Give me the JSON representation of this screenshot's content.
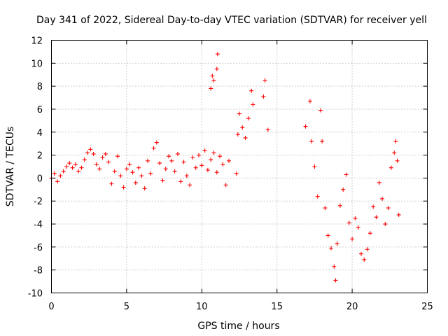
{
  "chart_data": {
    "type": "scatter",
    "title": "Day 341 of 2022, Sidereal Day-to-day VTEC variation (SDTVAR) for receiver yell",
    "xlabel": "GPS time / hours",
    "ylabel": "SDTVAR / TECUs",
    "xlim": [
      0,
      25
    ],
    "ylim": [
      -10,
      12
    ],
    "xticks": [
      0,
      5,
      10,
      15,
      20,
      25
    ],
    "yticks": [
      -10,
      -8,
      -6,
      -4,
      -2,
      0,
      2,
      4,
      6,
      8,
      10,
      12
    ],
    "xtick_labels": [
      "0",
      "5",
      "10",
      "15",
      "20",
      "25"
    ],
    "ytick_labels": [
      "-10",
      "-8",
      "-6",
      "-4",
      "-2",
      "0",
      "2",
      "4",
      "6",
      "8",
      "10",
      "12"
    ],
    "grid": true,
    "marker": "+",
    "color": "#ff0000",
    "series": [
      {
        "name": "SDTVAR",
        "points": [
          [
            0.0,
            0.0
          ],
          [
            0.2,
            0.4
          ],
          [
            0.4,
            -0.3
          ],
          [
            0.6,
            0.2
          ],
          [
            0.8,
            0.6
          ],
          [
            1.0,
            1.0
          ],
          [
            1.2,
            1.3
          ],
          [
            1.4,
            0.9
          ],
          [
            1.6,
            1.2
          ],
          [
            1.8,
            0.6
          ],
          [
            2.0,
            0.9
          ],
          [
            2.2,
            1.6
          ],
          [
            2.4,
            2.2
          ],
          [
            2.6,
            2.5
          ],
          [
            2.8,
            2.1
          ],
          [
            3.0,
            1.2
          ],
          [
            3.2,
            0.8
          ],
          [
            3.4,
            1.8
          ],
          [
            3.6,
            2.1
          ],
          [
            3.8,
            1.4
          ],
          [
            4.0,
            -0.5
          ],
          [
            4.2,
            0.6
          ],
          [
            4.4,
            1.9
          ],
          [
            4.6,
            0.2
          ],
          [
            4.8,
            -0.8
          ],
          [
            5.0,
            0.8
          ],
          [
            5.2,
            1.2
          ],
          [
            5.4,
            0.5
          ],
          [
            5.6,
            -0.4
          ],
          [
            5.8,
            0.9
          ],
          [
            6.0,
            0.2
          ],
          [
            6.2,
            -0.9
          ],
          [
            6.4,
            1.5
          ],
          [
            6.6,
            0.4
          ],
          [
            6.8,
            2.6
          ],
          [
            7.0,
            3.1
          ],
          [
            7.2,
            1.3
          ],
          [
            7.4,
            -0.2
          ],
          [
            7.6,
            0.8
          ],
          [
            7.8,
            1.9
          ],
          [
            8.0,
            1.5
          ],
          [
            8.2,
            0.6
          ],
          [
            8.4,
            2.1
          ],
          [
            8.6,
            -0.3
          ],
          [
            8.8,
            1.4
          ],
          [
            9.0,
            0.2
          ],
          [
            9.2,
            -0.6
          ],
          [
            9.4,
            1.8
          ],
          [
            9.6,
            0.9
          ],
          [
            9.8,
            2.0
          ],
          [
            10.0,
            1.1
          ],
          [
            10.2,
            2.4
          ],
          [
            10.4,
            0.7
          ],
          [
            10.6,
            1.6
          ],
          [
            10.8,
            2.2
          ],
          [
            11.0,
            0.5
          ],
          [
            11.2,
            1.9
          ],
          [
            11.4,
            1.2
          ],
          [
            11.6,
            -0.6
          ],
          [
            11.8,
            1.5
          ],
          [
            10.6,
            7.8
          ],
          [
            10.8,
            8.5
          ],
          [
            11.0,
            9.5
          ],
          [
            11.05,
            10.8
          ],
          [
            10.7,
            8.9
          ],
          [
            12.3,
            0.4
          ],
          [
            12.4,
            3.8
          ],
          [
            12.5,
            5.6
          ],
          [
            12.7,
            4.4
          ],
          [
            12.9,
            3.5
          ],
          [
            13.1,
            5.2
          ],
          [
            13.3,
            7.6
          ],
          [
            13.4,
            6.4
          ],
          [
            14.1,
            7.1
          ],
          [
            14.2,
            8.5
          ],
          [
            14.4,
            4.2
          ],
          [
            16.9,
            4.5
          ],
          [
            17.2,
            6.7
          ],
          [
            17.3,
            3.2
          ],
          [
            17.5,
            1.0
          ],
          [
            17.7,
            -1.6
          ],
          [
            17.9,
            5.9
          ],
          [
            18.0,
            3.2
          ],
          [
            18.2,
            -2.6
          ],
          [
            18.4,
            -5.0
          ],
          [
            18.6,
            -6.1
          ],
          [
            18.8,
            -7.7
          ],
          [
            18.9,
            -8.9
          ],
          [
            19.0,
            -5.7
          ],
          [
            19.2,
            -2.4
          ],
          [
            19.4,
            -1.0
          ],
          [
            19.6,
            0.3
          ],
          [
            19.8,
            -3.9
          ],
          [
            20.0,
            -5.3
          ],
          [
            20.2,
            -3.5
          ],
          [
            20.4,
            -4.3
          ],
          [
            20.6,
            -6.6
          ],
          [
            20.8,
            -7.1
          ],
          [
            21.0,
            -6.2
          ],
          [
            21.2,
            -4.8
          ],
          [
            21.4,
            -2.5
          ],
          [
            21.6,
            -3.4
          ],
          [
            21.8,
            -0.4
          ],
          [
            22.0,
            -1.8
          ],
          [
            22.2,
            -4.0
          ],
          [
            22.4,
            -2.6
          ],
          [
            22.6,
            0.9
          ],
          [
            22.8,
            2.2
          ],
          [
            22.9,
            3.2
          ],
          [
            23.0,
            1.5
          ],
          [
            23.1,
            -3.2
          ]
        ]
      }
    ]
  }
}
